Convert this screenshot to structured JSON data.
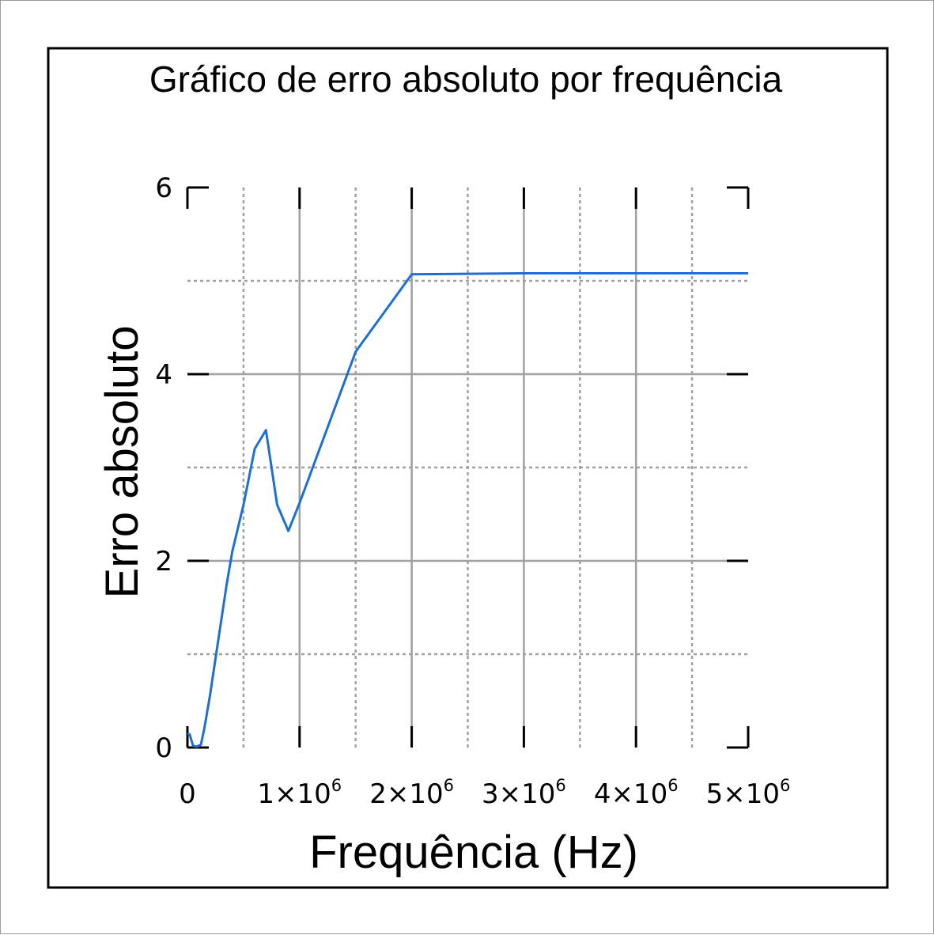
{
  "chart_data": {
    "type": "line",
    "title": "Gráfico de erro absoluto por frequência",
    "xlabel": "Frequência (Hz)",
    "ylabel": "Erro absoluto",
    "xlim": [
      0,
      5000000
    ],
    "ylim": [
      0,
      6
    ],
    "x_ticks": [
      {
        "value": 0,
        "base": "0",
        "exp": ""
      },
      {
        "value": 1000000,
        "base": "1×10",
        "exp": "6"
      },
      {
        "value": 2000000,
        "base": "2×10",
        "exp": "6"
      },
      {
        "value": 3000000,
        "base": "3×10",
        "exp": "6"
      },
      {
        "value": 4000000,
        "base": "4×10",
        "exp": "6"
      },
      {
        "value": 5000000,
        "base": "5×10",
        "exp": "6"
      }
    ],
    "y_ticks": [
      {
        "value": 0,
        "label": "0"
      },
      {
        "value": 2,
        "label": "2"
      },
      {
        "value": 4,
        "label": "4"
      },
      {
        "value": 6,
        "label": "6"
      }
    ],
    "x_minor_grid": [
      500000,
      1500000,
      2500000,
      3500000,
      4500000
    ],
    "y_minor_grid": [
      1,
      3,
      5
    ],
    "grid": true,
    "line_color": "#1f6fd0",
    "series": [
      {
        "x": [
          0,
          20000,
          50000,
          80000,
          120000,
          150000,
          200000,
          250000,
          300000,
          350000,
          400000,
          500000,
          600000,
          700000,
          800000,
          900000,
          1000000,
          1500000,
          2000000,
          3000000,
          4000000,
          5000000
        ],
        "y": [
          0.15,
          0.14,
          0.02,
          0.01,
          0.03,
          0.2,
          0.55,
          0.95,
          1.35,
          1.75,
          2.1,
          2.6,
          3.2,
          3.4,
          2.6,
          2.32,
          2.62,
          4.24,
          5.07,
          5.08,
          5.08,
          5.08
        ]
      }
    ]
  }
}
